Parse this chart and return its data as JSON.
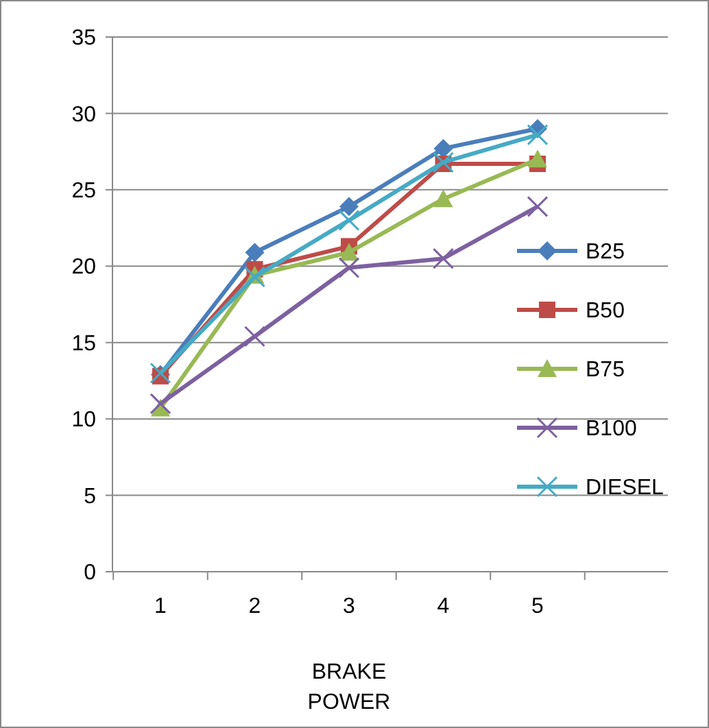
{
  "chart_data": {
    "type": "line",
    "xlabel": "BRAKE POWER",
    "categories": [
      "1",
      "2",
      "3",
      "4",
      "5"
    ],
    "series": [
      {
        "name": "B25",
        "color": "#4a7ebb",
        "marker": "diamond",
        "values": [
          12.9,
          20.9,
          23.9,
          27.7,
          29
        ]
      },
      {
        "name": "B50",
        "color": "#be4b48",
        "marker": "square",
        "values": [
          12.8,
          19.8,
          21.3,
          26.7,
          26.7
        ]
      },
      {
        "name": "B75",
        "color": "#98b954",
        "marker": "triangle",
        "values": [
          10.7,
          19.4,
          20.9,
          24.4,
          27
        ]
      },
      {
        "name": "B100",
        "color": "#7d60a0",
        "marker": "cross",
        "values": [
          11,
          15.4,
          19.9,
          20.5,
          23.9
        ]
      },
      {
        "name": "DIESEL",
        "color": "#46aac5",
        "marker": "cross",
        "values": [
          13,
          19.3,
          23,
          26.8,
          28.6
        ]
      }
    ],
    "ylim": [
      0,
      35
    ],
    "yticks": [
      0,
      5,
      10,
      15,
      20,
      25,
      30,
      35
    ],
    "grid": "y",
    "legend": "right"
  }
}
